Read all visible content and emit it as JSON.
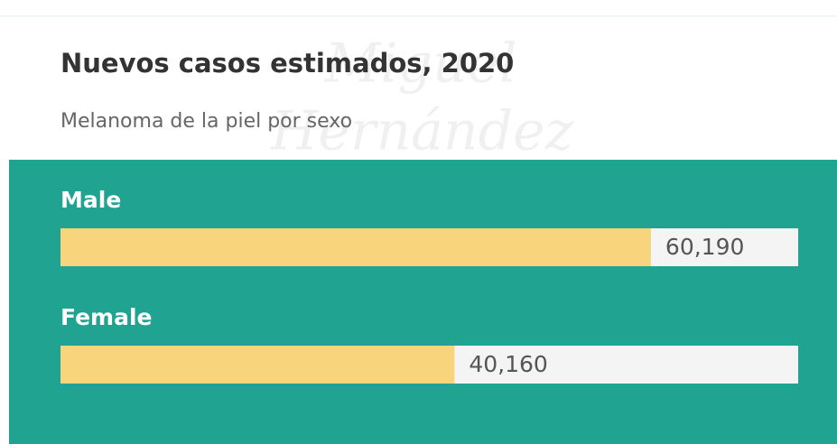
{
  "chart_data": {
    "type": "hbar",
    "title": "Nuevos casos estimados, 2020",
    "subtitle": "Melanoma de la piel por sexo",
    "watermark": [
      "Miguel",
      "Hernández"
    ],
    "categories": [
      "Male",
      "Female"
    ],
    "values": [
      60190,
      40160
    ],
    "value_labels": [
      "60,190",
      "40,160"
    ],
    "color": "#f8d57c",
    "xlim": [
      0,
      75200
    ]
  }
}
